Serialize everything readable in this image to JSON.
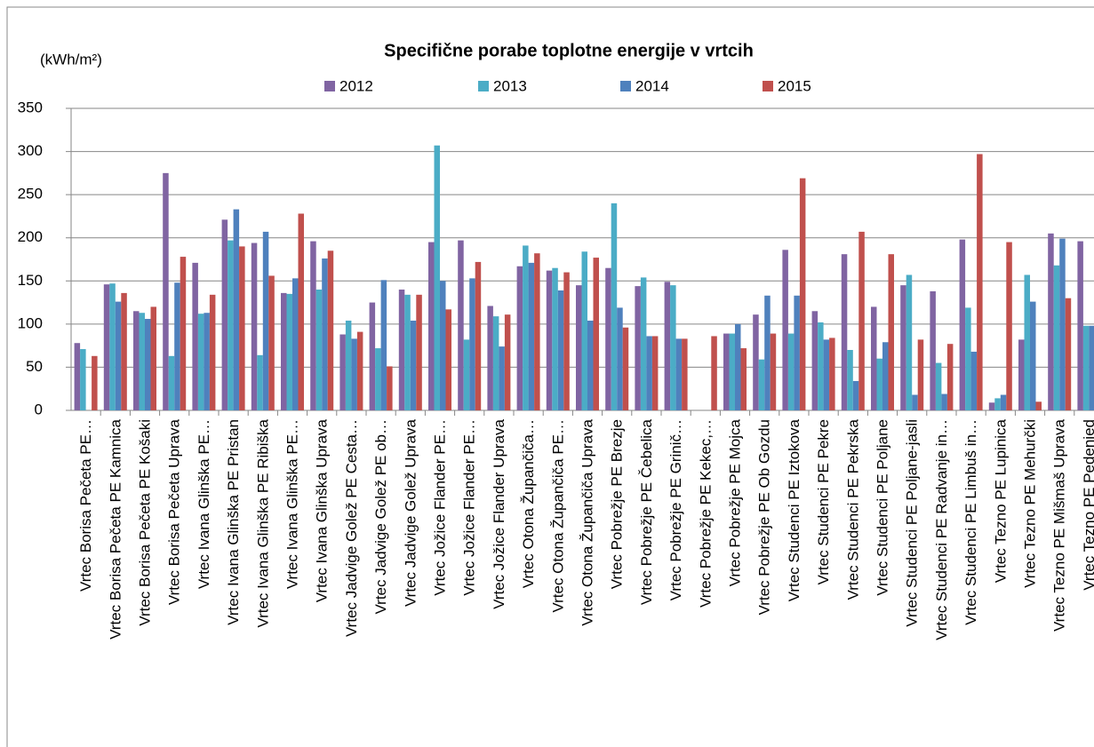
{
  "chart_data": {
    "type": "bar",
    "title": "Specifične porabe toplotne energije v vrtcih",
    "y_label": "(kWh/m²)",
    "categories": [
      "Vrtec Borisa Pečeta PE…",
      "Vrtec Borisa Pečeta PE Kamnica",
      "Vrtec Borisa Pečeta PE Košaki",
      "Vrtec Borisa Pečeta Uprava",
      "Vrtec Ivana Glinška PE…",
      "Vrtec Ivana Glinška PE Pristan",
      "Vrtec Ivana Glinška PE Ribiška",
      "Vrtec Ivana Glinška PE…",
      "Vrtec Ivana Glinška Uprava",
      "Vrtec Jadvige Golež PE Cesta…",
      "Vrtec Jadvige Golež PE ob…",
      "Vrtec Jadvige Golež Uprava",
      "Vrtec Jožice Flander PE…",
      "Vrtec Jožice Flander PE…",
      "Vrtec Jožice Flander Uprava",
      "Vrtec Otona Župančiča…",
      "Vrtec Otona Župančiča PE…",
      "Vrtec Otona Župančiča Uprava",
      "Vrtec Pobrežje PE Brezje",
      "Vrtec Pobrežje PE Čebelica",
      "Vrtec Pobrežje PE Grinič…",
      "Vrtec Pobrežje PE Kekec,…",
      "Vrtec Pobrežje PE Mojca",
      "Vrtec Pobrežje PE Ob Gozdu",
      "Vrtec Studenci PE Iztokova",
      "Vrtec Studenci PE Pekre",
      "Vrtec Studenci PE Pekrska",
      "Vrtec Studenci PE Poljane",
      "Vrtec Studenci PE Poljane-jasli",
      "Vrtec Studenci PE Radvanje in…",
      "Vrtec Studenci PE Limbuš in…",
      "Vrtec Tezno PE Lupinica",
      "Vrtec Tezno PE Mehurčki",
      "Vrtec Tezno PE Mišmaš Uprava",
      "Vrtec Tezno PE Pedenjed"
    ],
    "series": [
      {
        "name": "2012",
        "color": "#8064a2",
        "values": [
          78,
          146,
          115,
          275,
          171,
          221,
          194,
          136,
          196,
          88,
          125,
          140,
          195,
          197,
          121,
          167,
          162,
          145,
          165,
          144,
          149,
          null,
          89,
          111,
          186,
          115,
          181,
          120,
          145,
          138,
          198,
          9,
          82,
          205,
          196
        ]
      },
      {
        "name": "2013",
        "color": "#4bacc6",
        "values": [
          71,
          147,
          113,
          63,
          112,
          197,
          64,
          135,
          140,
          104,
          72,
          134,
          307,
          82,
          109,
          191,
          165,
          184,
          240,
          154,
          145,
          null,
          89,
          59,
          89,
          102,
          70,
          60,
          157,
          55,
          119,
          14,
          157,
          168,
          98
        ]
      },
      {
        "name": "2014",
        "color": "#4f81bd",
        "values": [
          null,
          126,
          106,
          148,
          113,
          233,
          207,
          153,
          176,
          83,
          151,
          104,
          150,
          153,
          74,
          171,
          139,
          104,
          119,
          86,
          83,
          null,
          100,
          133,
          133,
          82,
          34,
          79,
          18,
          19,
          68,
          18,
          126,
          199,
          98
        ]
      },
      {
        "name": "2015",
        "color": "#c0504d",
        "values": [
          63,
          136,
          120,
          178,
          134,
          190,
          156,
          228,
          185,
          91,
          51,
          134,
          117,
          172,
          111,
          182,
          160,
          177,
          96,
          86,
          83,
          86,
          72,
          89,
          269,
          84,
          207,
          181,
          82,
          77,
          297,
          195,
          10,
          130,
          null
        ]
      }
    ],
    "ylim": [
      0,
      350
    ],
    "yticks": [
      0,
      50,
      100,
      150,
      200,
      250,
      300,
      350
    ],
    "grid": true,
    "legend": "top"
  }
}
